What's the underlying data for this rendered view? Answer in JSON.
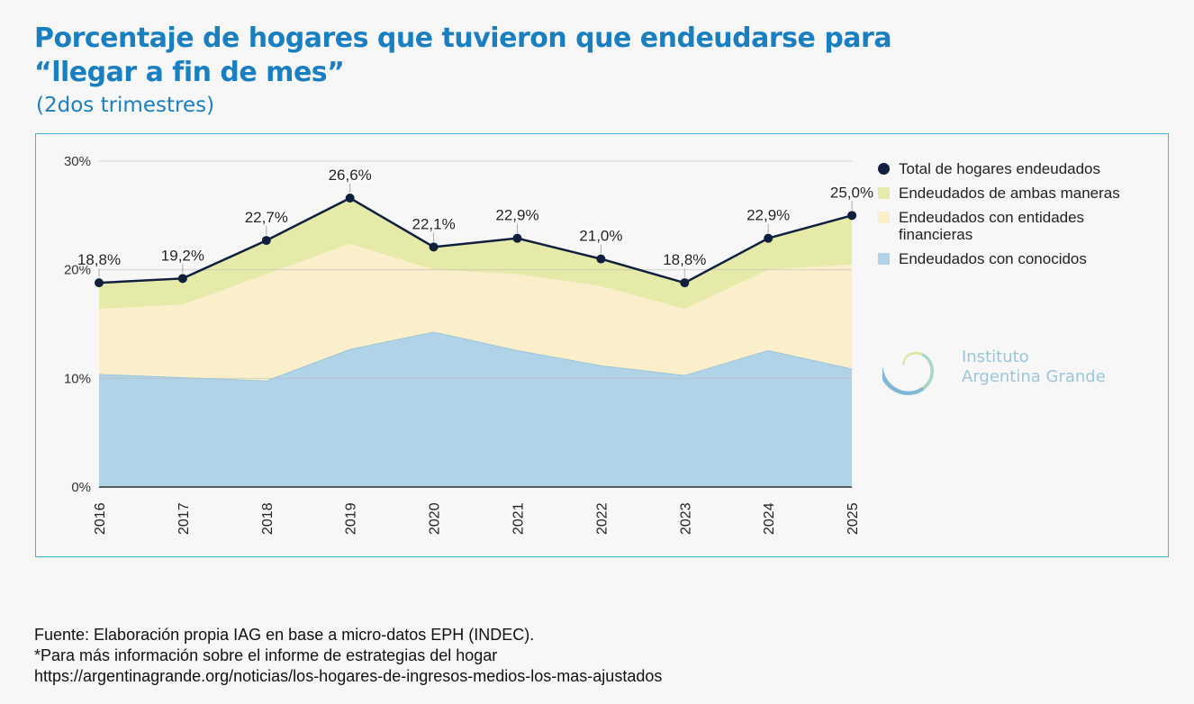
{
  "title_line1": "Porcentaje de hogares que tuvieron que endeudarse para",
  "title_line2": "“llegar a fin de mes”",
  "subtitle": "(2dos trimestres)",
  "chart_data": {
    "type": "area",
    "stacked": true,
    "categories": [
      "2016",
      "2017",
      "2018",
      "2019",
      "2020",
      "2021",
      "2022",
      "2023",
      "2024",
      "2025"
    ],
    "y_ticks": [
      "0%",
      "10%",
      "20%",
      "30%"
    ],
    "ylim": [
      0,
      30
    ],
    "series": [
      {
        "name": "Endeudados con conocidos",
        "color": "#b0d3e8",
        "values": [
          10.4,
          10.1,
          9.8,
          12.7,
          14.3,
          12.6,
          11.2,
          10.3,
          12.6,
          10.9
        ]
      },
      {
        "name": "Endeudados con entidades financieras",
        "color": "#faeecb",
        "values": [
          6.0,
          6.7,
          9.8,
          9.7,
          5.7,
          7.0,
          7.3,
          6.1,
          7.4,
          9.6
        ]
      },
      {
        "name": "Endeudados de ambas maneras",
        "color": "#e5eaa9",
        "values": [
          2.4,
          2.4,
          3.1,
          4.2,
          2.1,
          3.3,
          2.5,
          2.4,
          2.9,
          4.5
        ]
      }
    ],
    "total": {
      "name": "Total de hogares endeudados",
      "color": "#0f1f3d",
      "values": [
        18.8,
        19.2,
        22.7,
        26.6,
        22.1,
        22.9,
        21.0,
        18.8,
        22.9,
        25.0
      ],
      "labels": [
        "18,8%",
        "19,2%",
        "22,7%",
        "26,6%",
        "22,1%",
        "22,9%",
        "21,0%",
        "18,8%",
        "22,9%",
        "25,0%"
      ]
    },
    "legend": [
      "Total de hogares endeudados",
      "Endeudados de ambas maneras",
      "Endeudados con entidades financieras",
      "Endeudados con conocidos"
    ],
    "legend_position": "right"
  },
  "logo": {
    "line1": "Instituto",
    "line2": "Argentina Grande"
  },
  "footer": [
    "Fuente: Elaboración propia IAG en base a micro-datos EPH (INDEC).",
    "*Para más información sobre el informe de estrategias del hogar",
    "https://argentinagrande.org/noticias/los-hogares-de-ingresos-medios-los-mas-ajustados"
  ]
}
